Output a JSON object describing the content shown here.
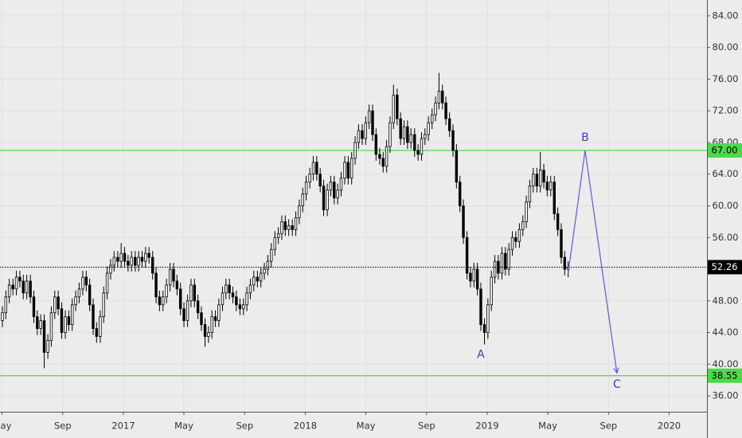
{
  "chart_data": {
    "type": "candlestick",
    "x": [
      2016.335,
      2016.354,
      2016.373,
      2016.393,
      2016.412,
      2016.431,
      2016.45,
      2016.469,
      2016.489,
      2016.508,
      2016.527,
      2016.546,
      2016.565,
      2016.585,
      2016.604,
      2016.623,
      2016.642,
      2016.661,
      2016.681,
      2016.7,
      2016.719,
      2016.738,
      2016.757,
      2016.777,
      2016.796,
      2016.815,
      2016.834,
      2016.853,
      2016.873,
      2016.892,
      2016.911,
      2016.93,
      2016.949,
      2016.969,
      2016.988,
      2017.007,
      2017.026,
      2017.045,
      2017.065,
      2017.084,
      2017.103,
      2017.122,
      2017.141,
      2017.161,
      2017.18,
      2017.199,
      2017.218,
      2017.237,
      2017.257,
      2017.276,
      2017.295,
      2017.314,
      2017.333,
      2017.353,
      2017.372,
      2017.391,
      2017.41,
      2017.429,
      2017.449,
      2017.468,
      2017.487,
      2017.506,
      2017.525,
      2017.545,
      2017.564,
      2017.583,
      2017.602,
      2017.621,
      2017.641,
      2017.66,
      2017.679,
      2017.698,
      2017.717,
      2017.737,
      2017.756,
      2017.775,
      2017.794,
      2017.813,
      2017.833,
      2017.852,
      2017.871,
      2017.89,
      2017.909,
      2017.929,
      2017.948,
      2017.967,
      2017.986,
      2018.005,
      2018.025,
      2018.044,
      2018.063,
      2018.082,
      2018.101,
      2018.121,
      2018.14,
      2018.159,
      2018.178,
      2018.197,
      2018.217,
      2018.236,
      2018.255,
      2018.274,
      2018.293,
      2018.313,
      2018.332,
      2018.351,
      2018.37,
      2018.389,
      2018.409,
      2018.428,
      2018.447,
      2018.466,
      2018.485,
      2018.505,
      2018.524,
      2018.543,
      2018.562,
      2018.581,
      2018.601,
      2018.62,
      2018.639,
      2018.658,
      2018.677,
      2018.697,
      2018.716,
      2018.735,
      2018.754,
      2018.773,
      2018.793,
      2018.812,
      2018.831,
      2018.85,
      2018.869,
      2018.889,
      2018.908,
      2018.927,
      2018.946,
      2018.965,
      2018.985,
      2019.004,
      2019.023,
      2019.042,
      2019.061,
      2019.081,
      2019.1,
      2019.119,
      2019.138,
      2019.157,
      2019.177,
      2019.196,
      2019.215,
      2019.234,
      2019.253,
      2019.273,
      2019.292,
      2019.311,
      2019.33,
      2019.349,
      2019.369,
      2019.388,
      2019.407,
      2019.426,
      2019.445
    ],
    "open": [
      45.5,
      46.5,
      48.5,
      50,
      49.5,
      51,
      50.5,
      49,
      50.5,
      48.5,
      46,
      44.5,
      45.5,
      41.5,
      43,
      46.5,
      48.5,
      47,
      44,
      46,
      45,
      47.5,
      48.5,
      49.5,
      51,
      50,
      47.5,
      44.5,
      43.5,
      46,
      49,
      51.5,
      52.5,
      53.5,
      53,
      54,
      53,
      52.5,
      53.5,
      52.5,
      53.5,
      53,
      54,
      53.5,
      51.5,
      48.5,
      47.5,
      48.5,
      50,
      52,
      50.5,
      49.5,
      47,
      45.5,
      48,
      50,
      48,
      46.5,
      45,
      43.5,
      44,
      46,
      45.5,
      47.5,
      49,
      50,
      49,
      48.5,
      47.5,
      47,
      47.5,
      49,
      50,
      51,
      50.5,
      51.5,
      52,
      53,
      54.5,
      56,
      56.5,
      58,
      57,
      57.5,
      57,
      58.5,
      60,
      61.5,
      63,
      64,
      65.5,
      64,
      62.5,
      59.5,
      62,
      63,
      61,
      62,
      63.5,
      65.5,
      63.5,
      66,
      68,
      69.5,
      68.5,
      70.5,
      72,
      69,
      66.5,
      66,
      65,
      67.5,
      70.5,
      74,
      71,
      68.5,
      70,
      68,
      69,
      67,
      66.5,
      68.5,
      69,
      70.5,
      71.5,
      73,
      74.5,
      73,
      71,
      69.5,
      67,
      63,
      60,
      56,
      51.5,
      50.5,
      52,
      49.5,
      45,
      44,
      47.5,
      51,
      53,
      51.5,
      54,
      52,
      54.5,
      56,
      55.5,
      57,
      58,
      60.5,
      62.5,
      64,
      62.5,
      64.5,
      63,
      62,
      63,
      59,
      57,
      53.5,
      52
    ],
    "high": [
      47.3,
      49.3,
      50.8,
      50.8,
      51.8,
      51.8,
      51.3,
      51.3,
      51.3,
      49.3,
      46.8,
      46.3,
      46.3,
      43.8,
      47.3,
      49.3,
      49.3,
      47.8,
      46.8,
      46.8,
      48.3,
      49.3,
      50.3,
      51.8,
      51.8,
      50.8,
      48.3,
      45.3,
      46.8,
      49.8,
      52.3,
      53.3,
      54.3,
      54.3,
      55.3,
      54.8,
      53.8,
      54.3,
      54.3,
      54.3,
      54.3,
      54.8,
      54.8,
      54.3,
      52.3,
      49.3,
      49.3,
      50.8,
      52.8,
      52.8,
      51.3,
      50.3,
      47.8,
      48.8,
      50.8,
      50.8,
      48.8,
      47.3,
      45.8,
      44.8,
      46.8,
      46.8,
      48.3,
      49.8,
      50.8,
      50.8,
      49.8,
      49.3,
      48.3,
      48.3,
      49.8,
      50.8,
      51.8,
      51.8,
      52.3,
      52.8,
      53.8,
      55.3,
      56.8,
      57.3,
      58.8,
      58.8,
      58.3,
      58.3,
      59.3,
      60.8,
      62.3,
      63.8,
      64.8,
      66.3,
      66.3,
      64.8,
      63.3,
      62.8,
      63.8,
      63.8,
      62.8,
      64.3,
      66.3,
      66.3,
      66.8,
      68.8,
      70.3,
      70.3,
      71.3,
      72.8,
      72.8,
      69.8,
      67.3,
      66.8,
      68.3,
      71.3,
      75.3,
      74.8,
      71.8,
      70.8,
      70.8,
      69.8,
      69.8,
      67.8,
      69.3,
      69.8,
      71.3,
      72.3,
      73.8,
      76.8,
      75.3,
      73.8,
      71.8,
      70.3,
      67.8,
      63.8,
      60.8,
      56.8,
      52.3,
      52.8,
      52.8,
      50.3,
      45.8,
      48.3,
      51.8,
      53.8,
      53.8,
      54.8,
      54.8,
      55.3,
      56.8,
      56.8,
      57.8,
      58.8,
      61.3,
      63.3,
      64.8,
      64.8,
      66.8,
      65.3,
      63.8,
      63.8,
      63.8,
      59.8,
      57.8,
      54.3,
      53.0
    ],
    "low": [
      44.7,
      45.7,
      47.7,
      48.7,
      48.7,
      49.7,
      48.2,
      48.2,
      47.7,
      45.2,
      43.7,
      43.7,
      39.5,
      40.7,
      42.2,
      45.7,
      46.2,
      43.2,
      43.2,
      44.2,
      44.2,
      46.7,
      47.7,
      48.7,
      49.2,
      46.7,
      43.7,
      42.7,
      42.7,
      45.2,
      48.2,
      50.7,
      51.7,
      52.2,
      52.2,
      52.2,
      51.7,
      51.7,
      51.7,
      51.7,
      52.2,
      52.2,
      52.7,
      50.7,
      47.7,
      46.7,
      46.7,
      47.7,
      49.2,
      49.7,
      48.7,
      46.2,
      44.7,
      44.7,
      47.2,
      47.2,
      45.7,
      44.2,
      42.2,
      42.7,
      43.2,
      44.7,
      44.7,
      46.7,
      48.2,
      48.2,
      47.7,
      46.7,
      46.2,
      46.2,
      46.7,
      48.2,
      49.2,
      49.7,
      49.7,
      50.7,
      51.2,
      52.2,
      53.7,
      55.2,
      55.7,
      56.2,
      56.2,
      56.2,
      56.2,
      57.7,
      59.2,
      60.7,
      62.2,
      63.2,
      63.2,
      61.7,
      58.7,
      58.7,
      61.2,
      60.2,
      60.2,
      61.2,
      62.7,
      62.7,
      62.7,
      65.2,
      67.2,
      67.7,
      67.7,
      69.7,
      68.2,
      65.7,
      65.2,
      64.2,
      64.2,
      66.7,
      69.7,
      70.2,
      67.7,
      67.7,
      67.2,
      67.2,
      66.2,
      65.7,
      65.7,
      67.7,
      68.2,
      69.7,
      70.7,
      72.2,
      72.2,
      70.2,
      68.7,
      66.2,
      62.2,
      59.2,
      55.2,
      50.7,
      49.7,
      49.7,
      48.7,
      44.2,
      42.5,
      43.2,
      46.7,
      50.2,
      50.7,
      50.7,
      51.2,
      51.2,
      53.7,
      54.7,
      54.7,
      56.2,
      57.2,
      59.7,
      61.7,
      61.7,
      61.7,
      62.2,
      61.2,
      61.2,
      58.2,
      56.2,
      52.7,
      51.2,
      51.0
    ],
    "close": [
      46.5,
      48.5,
      50,
      49.5,
      51,
      50.5,
      49,
      50.5,
      48.5,
      46,
      44.5,
      45.5,
      41.5,
      43,
      46.5,
      48.5,
      47,
      44,
      46,
      45,
      47.5,
      48.5,
      49.5,
      51,
      50,
      47.5,
      44.5,
      43.5,
      46,
      49,
      51.5,
      52.5,
      53.5,
      53,
      54,
      53,
      52.5,
      53.5,
      52.5,
      53.5,
      53,
      54,
      53.5,
      51.5,
      48.5,
      47.5,
      48.5,
      50,
      52,
      50.5,
      49.5,
      47,
      45.5,
      48,
      50,
      48,
      46.5,
      45,
      43.5,
      44,
      46,
      45.5,
      47.5,
      49,
      50,
      49,
      48.5,
      47.5,
      47,
      47.5,
      49,
      50,
      51,
      50.5,
      51.5,
      52,
      53,
      54.5,
      56,
      56.5,
      58,
      57,
      57.5,
      57,
      58.5,
      60,
      61.5,
      63,
      64,
      65.5,
      64,
      62.5,
      59.5,
      62,
      63,
      61,
      62,
      63.5,
      65.5,
      63.5,
      66,
      68,
      69.5,
      68.5,
      70.5,
      72,
      69,
      66.5,
      66,
      65,
      67.5,
      70.5,
      74,
      71,
      68.5,
      70,
      68,
      69,
      67,
      66.5,
      68.5,
      69,
      70.5,
      71.5,
      73,
      74.5,
      73,
      71,
      69.5,
      67,
      63,
      60,
      56,
      51.5,
      50.5,
      52,
      49.5,
      45,
      44,
      47.5,
      51,
      53,
      51.5,
      54,
      52,
      54.5,
      56,
      55.5,
      57,
      58,
      60.5,
      62.5,
      64,
      62.5,
      64.5,
      63,
      62,
      63,
      59,
      57,
      53.5,
      52,
      52.26
    ],
    "up_color": "#ffffff",
    "down_color": "#000000",
    "wick_color": "#000000",
    "xlim": [
      2016.322,
      2020.208
    ],
    "ylim": [
      34,
      86
    ],
    "xticks": [
      {
        "value": 2016.333,
        "label": "May"
      },
      {
        "value": 2016.667,
        "label": "Sep"
      },
      2017,
      {
        "value": 2017.333,
        "label": "May"
      },
      {
        "value": 2017.667,
        "label": "Sep"
      },
      2018,
      {
        "value": 2018.333,
        "label": "May"
      },
      {
        "value": 2018.667,
        "label": "Sep"
      },
      2019,
      {
        "value": 2019.333,
        "label": "May"
      },
      {
        "value": 2019.667,
        "label": "Sep"
      },
      2020
    ],
    "yticks": [
      {
        "value": 36,
        "label": "36.00"
      },
      {
        "value": 40,
        "label": "40.00"
      },
      {
        "value": 44,
        "label": "44.00"
      },
      {
        "value": 48,
        "label": "48.00"
      },
      {
        "value": 52,
        "label": "52.00"
      },
      {
        "value": 56,
        "label": "56.00"
      },
      {
        "value": 60,
        "label": "60.00"
      },
      {
        "value": 64,
        "label": "64.00"
      },
      {
        "value": 68,
        "label": "68.00"
      },
      {
        "value": 72,
        "label": "72.00"
      },
      {
        "value": 76,
        "label": "76.00"
      },
      {
        "value": 80,
        "label": "80.00"
      },
      {
        "value": 84,
        "label": "84.00"
      }
    ],
    "grid": true,
    "hlines": [
      {
        "value": 67,
        "label": "67.00",
        "color": "#4cd94c"
      },
      {
        "value": 38.55,
        "label": "38.55",
        "color": "#4cd94c"
      }
    ],
    "drawing": {
      "color": "#5a5ae6",
      "points": [
        {
          "x": 2019.445,
          "y": 51.5
        },
        {
          "x": 2019.538,
          "y": 67
        },
        {
          "x": 2019.713,
          "y": 38.9
        }
      ]
    },
    "annotations": [
      {
        "text": "A",
        "x": 2018.965,
        "y": 41.2
      },
      {
        "text": "B",
        "x": 2019.538,
        "y": 68.6
      },
      {
        "text": "C",
        "x": 2019.713,
        "y": 37.4
      }
    ],
    "annotation_color": "#3c3cc0"
  }
}
